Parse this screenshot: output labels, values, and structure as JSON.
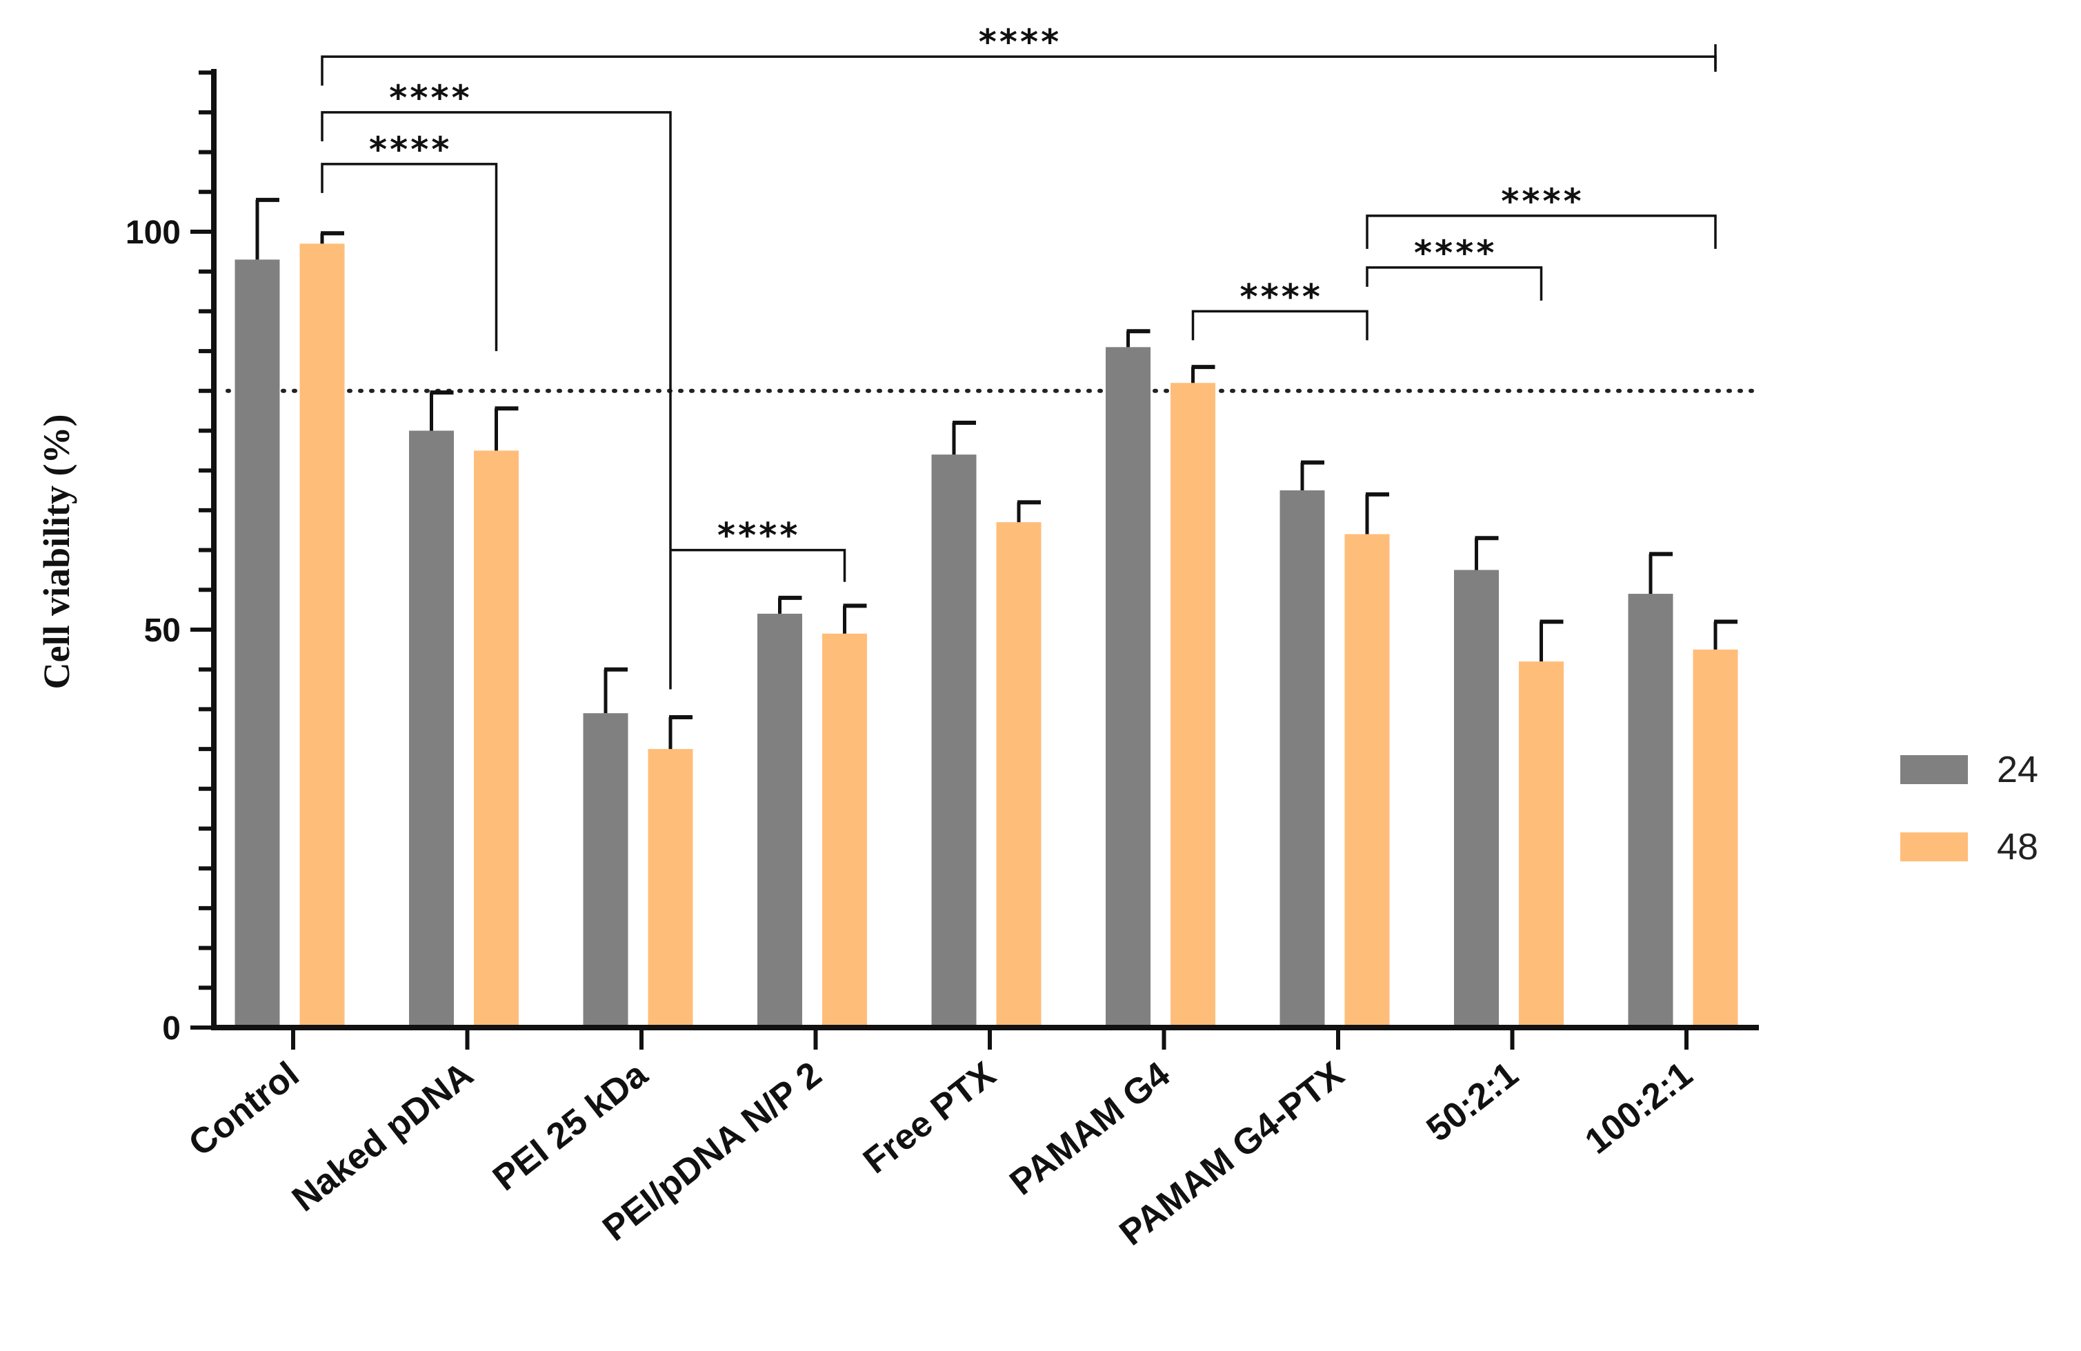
{
  "chart_data": {
    "type": "bar",
    "title": "",
    "xlabel": "",
    "ylabel": "Cell viability (%)",
    "ylim": [
      0,
      120
    ],
    "yticks": [
      0,
      50,
      100
    ],
    "reference_line": 80,
    "categories": [
      "Control",
      "Naked pDNA",
      "PEI 25 kDa",
      "PEI/pDNA N/P 2",
      "Free PTX",
      "PAMAM G4",
      "PAMAM G4-PTX",
      "50:2:1",
      "100:2:1"
    ],
    "series": [
      {
        "name": "24",
        "color": "#808080",
        "values": [
          96.5,
          75,
          39.5,
          52,
          72,
          85.5,
          67.5,
          57.5,
          54.5
        ],
        "errors": [
          7.5,
          4.8,
          5.5,
          2,
          4,
          2,
          3.5,
          4,
          5
        ]
      },
      {
        "name": "48",
        "color": "#FFBD7A",
        "values": [
          98.5,
          72.5,
          35,
          49.5,
          63.5,
          81,
          62,
          46,
          47.5
        ],
        "errors": [
          1.3,
          5.3,
          4,
          3.5,
          2.5,
          2,
          5,
          5,
          3.5
        ]
      }
    ],
    "legend": {
      "position": "right",
      "entries": [
        "24",
        "48"
      ]
    },
    "significance": [
      {
        "label": "****",
        "from_group": 0,
        "to_group": 8,
        "y": 122
      },
      {
        "label": "****",
        "from_group": 0,
        "to_group": 2,
        "y": 115
      },
      {
        "label": "****",
        "from_group": 0,
        "to_group": 1,
        "y": 108.5
      },
      {
        "label": "****",
        "from_group": 2,
        "to_group": 3,
        "y": 60
      },
      {
        "label": "****",
        "from_group": 6,
        "to_group": 8,
        "y": 102
      },
      {
        "label": "****",
        "from_group": 6,
        "to_group": 7,
        "y": 95.5
      },
      {
        "label": "****",
        "from_group": 5,
        "to_group": 6,
        "y": 90
      }
    ]
  }
}
